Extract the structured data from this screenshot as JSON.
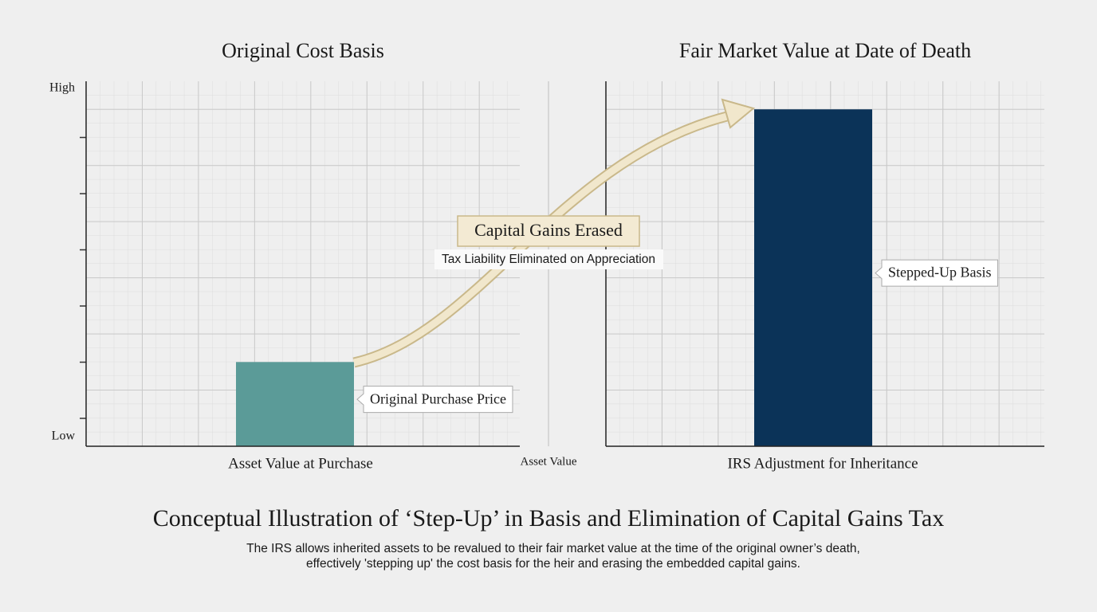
{
  "title": "Conceptual Illustration of ‘Step-Up’ in Basis and Elimination of Capital Gains Tax",
  "description": [
    "The IRS allows inherited assets to be revalued to their fair market value at the time of the original owner’s death,",
    "effectively 'stepping up' the cost basis for the heir and erasing the embedded capital gains."
  ],
  "center_label": "Asset Value",
  "arrow_annotation": {
    "title": "Capital Gains Erased",
    "subtitle": "Tax Liability Eliminated on Appreciation"
  },
  "chart_data": [
    {
      "type": "bar",
      "title": "Original Cost Basis",
      "categories": [
        "Asset Value at Purchase"
      ],
      "values": [
        6
      ],
      "color": "#5b9b98",
      "bar_label": "Original Purchase Price",
      "ylim": [
        0,
        26
      ],
      "yticks": [
        {
          "value": 0.7,
          "label": "Low"
        },
        {
          "value": 25.5,
          "label": "High"
        }
      ],
      "grid": true
    },
    {
      "type": "bar",
      "title": "Fair Market Value at Date of Death",
      "categories": [
        "IRS Adjustment for Inheritance"
      ],
      "values": [
        24
      ],
      "color": "#0b3358",
      "bar_label": "Stepped-Up Basis",
      "ylim": [
        0,
        26
      ],
      "grid": true
    }
  ]
}
